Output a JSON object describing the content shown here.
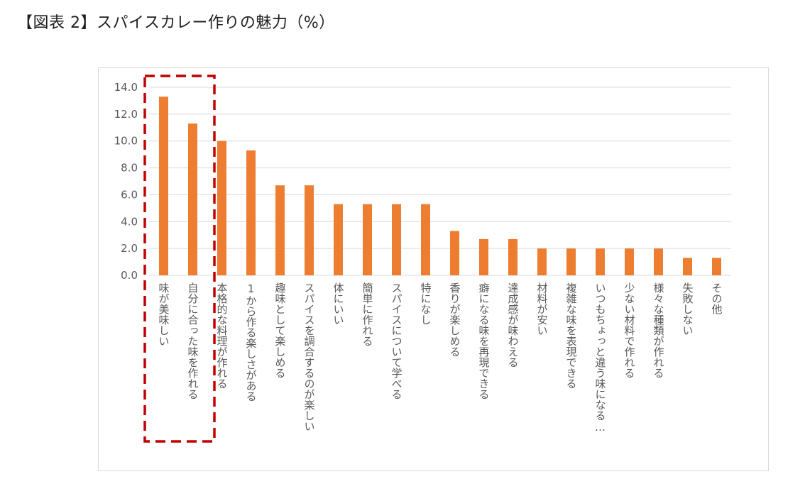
{
  "title": "【図表 2】スパイスカレー作りの魅力（%）",
  "chart_data": {
    "type": "bar",
    "title": "【図表 2】スパイスカレー作りの魅力（%）",
    "xlabel": "",
    "ylabel": "",
    "ylim": [
      0,
      14
    ],
    "yticks": [
      "0.0",
      "2.0",
      "4.0",
      "6.0",
      "8.0",
      "10.0",
      "12.0",
      "14.0"
    ],
    "grid": true,
    "categories": [
      "味が美味しい",
      "自分に合った味を作れる",
      "本格的な料理が作れる",
      "1から作る楽しさがある",
      "趣味として楽しめる",
      "スパイスを調合するのが楽しい",
      "体にいい",
      "簡単に作れる",
      "スパイスについて学べる",
      "特になし",
      "香りが楽しめる",
      "癖になる味を再現できる",
      "達成感が味わえる",
      "材料が安い",
      "複雑な味を表現できる",
      "いつもちょっと違う味になる…",
      "少ない材料で作れる",
      "様々な種類が作れる",
      "失敗しない",
      "その他"
    ],
    "values": [
      13.3,
      11.3,
      10.0,
      9.3,
      6.7,
      6.7,
      5.3,
      5.3,
      5.3,
      5.3,
      3.3,
      2.7,
      2.7,
      2.0,
      2.0,
      2.0,
      2.0,
      2.0,
      1.3,
      1.3
    ],
    "bar_color": "#ED7D31",
    "grid_color": "#d9d9d9",
    "highlight": {
      "categories": [
        0,
        1
      ],
      "color": "#C00000",
      "style": "dashed-box"
    }
  }
}
